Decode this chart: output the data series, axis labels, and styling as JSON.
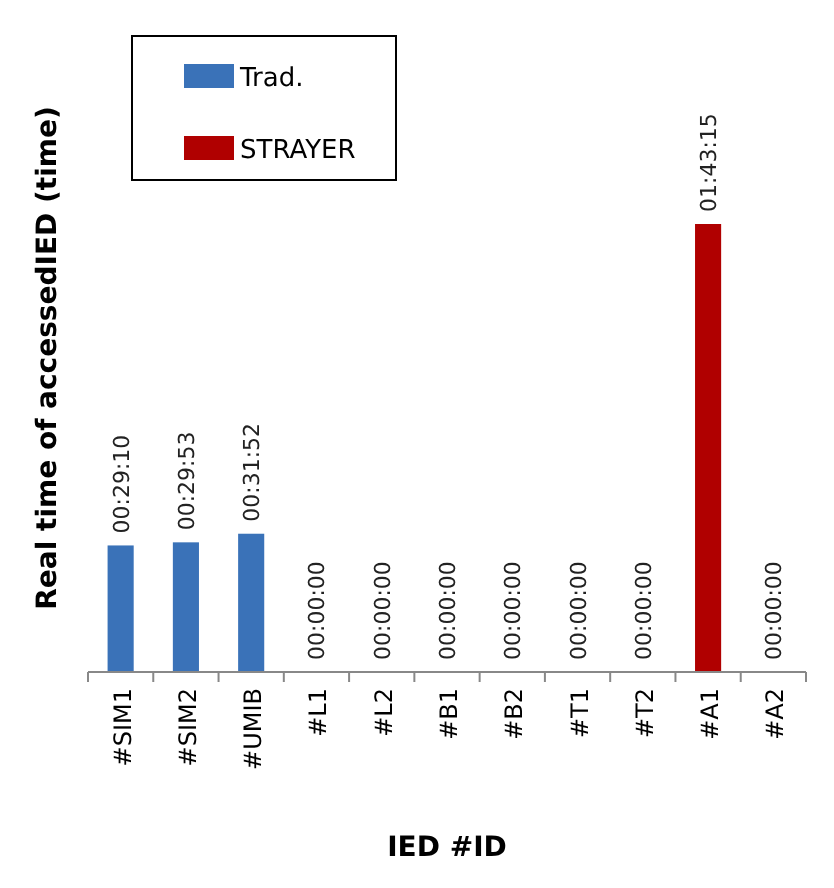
{
  "chart_data": {
    "type": "bar",
    "xlabel": "IED #ID",
    "ylabel": "Real time of accessedIED (time)",
    "stacked": true,
    "legend": "top left",
    "categories": [
      "#SIM1",
      "#SIM2",
      "#UMIB",
      "#L1",
      "#L2",
      "#B1",
      "#B2",
      "#T1",
      "#T2",
      "#A1",
      "#A2"
    ],
    "series": [
      {
        "name": "Trad.",
        "color": "#3a72b8",
        "values": [
          1750,
          1793,
          1912,
          0,
          0,
          0,
          0,
          0,
          0,
          null,
          0
        ],
        "value_labels": [
          "00:29:10",
          "00:29:53",
          "00:31:52",
          "00:00:00",
          "00:00:00",
          "00:00:00",
          "00:00:00",
          "00:00:00",
          "00:00:00",
          null,
          "00:00:00"
        ]
      },
      {
        "name": "STRAYER",
        "color": "#b00000",
        "values": [
          null,
          null,
          null,
          null,
          null,
          null,
          null,
          null,
          null,
          6195,
          null
        ],
        "value_labels": [
          null,
          null,
          null,
          null,
          null,
          null,
          null,
          null,
          null,
          "01:43:15",
          null
        ]
      }
    ]
  }
}
